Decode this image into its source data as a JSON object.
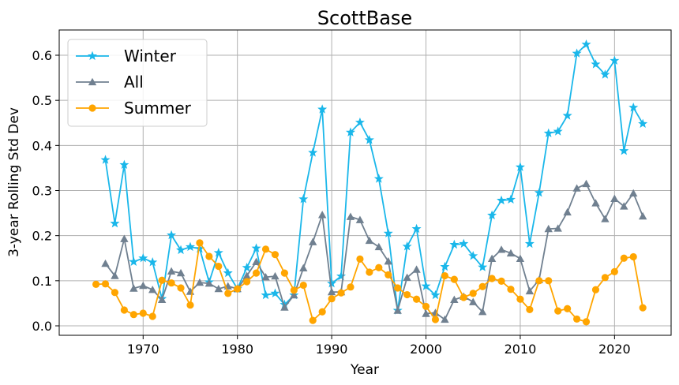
{
  "chart_data": {
    "type": "line",
    "title": "ScottBase",
    "xlabel": "Year",
    "ylabel": "3-year Rolling Std Dev",
    "xlim": [
      1961.1,
      2026
    ],
    "ylim": [
      -0.021,
      0.656
    ],
    "xticks": [
      1970,
      1980,
      1990,
      2000,
      2010,
      2020
    ],
    "yticks": [
      0.0,
      0.1,
      0.2,
      0.3,
      0.4,
      0.5,
      0.6
    ],
    "grid": true,
    "legend_position": "top-left",
    "series": [
      {
        "name": "Winter",
        "color": "#1ab7ea",
        "marker": "star",
        "x": [
          1966,
          1967,
          1968,
          1969,
          1970,
          1971,
          1972,
          1973,
          1974,
          1975,
          1976,
          1977,
          1978,
          1979,
          1980,
          1981,
          1982,
          1983,
          1984,
          1985,
          1986,
          1987,
          1988,
          1989,
          1990,
          1991,
          1992,
          1993,
          1994,
          1995,
          1996,
          1997,
          1998,
          1999,
          2000,
          2001,
          2002,
          2003,
          2004,
          2005,
          2006,
          2007,
          2008,
          2009,
          2010,
          2011,
          2012,
          2013,
          2014,
          2015,
          2016,
          2017,
          2018,
          2019,
          2020,
          2021,
          2022,
          2023
        ],
        "values": [
          0.368,
          0.227,
          0.357,
          0.142,
          0.15,
          0.141,
          0.06,
          0.201,
          0.168,
          0.175,
          0.171,
          0.097,
          0.162,
          0.117,
          0.082,
          0.129,
          0.172,
          0.068,
          0.072,
          0.047,
          0.068,
          0.281,
          0.384,
          0.48,
          0.094,
          0.11,
          0.429,
          0.451,
          0.412,
          0.326,
          0.205,
          0.034,
          0.176,
          0.215,
          0.088,
          0.068,
          0.131,
          0.18,
          0.182,
          0.155,
          0.13,
          0.245,
          0.278,
          0.28,
          0.352,
          0.182,
          0.295,
          0.427,
          0.431,
          0.466,
          0.604,
          0.624,
          0.58,
          0.557,
          0.588,
          0.388,
          0.484,
          0.448
        ]
      },
      {
        "name": "All",
        "color": "#708090",
        "marker": "triangle",
        "x": [
          1966,
          1967,
          1968,
          1969,
          1970,
          1971,
          1972,
          1973,
          1974,
          1975,
          1976,
          1977,
          1978,
          1979,
          1980,
          1981,
          1982,
          1983,
          1984,
          1985,
          1986,
          1987,
          1988,
          1989,
          1990,
          1991,
          1992,
          1993,
          1994,
          1995,
          1996,
          1997,
          1998,
          1999,
          2000,
          2001,
          2002,
          2003,
          2004,
          2005,
          2006,
          2007,
          2008,
          2009,
          2010,
          2011,
          2012,
          2013,
          2014,
          2015,
          2016,
          2017,
          2018,
          2019,
          2020,
          2021,
          2022,
          2023
        ],
        "values": [
          0.138,
          0.111,
          0.193,
          0.083,
          0.089,
          0.08,
          0.058,
          0.121,
          0.117,
          0.076,
          0.096,
          0.094,
          0.082,
          0.088,
          0.082,
          0.111,
          0.142,
          0.108,
          0.11,
          0.041,
          0.068,
          0.128,
          0.186,
          0.246,
          0.075,
          0.075,
          0.242,
          0.235,
          0.189,
          0.175,
          0.143,
          0.034,
          0.107,
          0.125,
          0.027,
          0.029,
          0.014,
          0.058,
          0.065,
          0.053,
          0.031,
          0.149,
          0.169,
          0.161,
          0.149,
          0.077,
          0.102,
          0.215,
          0.216,
          0.252,
          0.305,
          0.315,
          0.272,
          0.237,
          0.282,
          0.265,
          0.294,
          0.243
        ]
      },
      {
        "name": "Summer",
        "color": "#ffa500",
        "marker": "circle",
        "x": [
          1965,
          1966,
          1967,
          1968,
          1969,
          1970,
          1971,
          1972,
          1973,
          1974,
          1975,
          1976,
          1977,
          1978,
          1979,
          1980,
          1981,
          1982,
          1983,
          1984,
          1985,
          1986,
          1987,
          1988,
          1989,
          1990,
          1991,
          1992,
          1993,
          1994,
          1995,
          1996,
          1997,
          1998,
          1999,
          2000,
          2001,
          2002,
          2003,
          2004,
          2005,
          2006,
          2007,
          2008,
          2009,
          2010,
          2011,
          2012,
          2013,
          2014,
          2015,
          2016,
          2017,
          2018,
          2019,
          2020,
          2021,
          2022,
          2023
        ],
        "values": [
          0.092,
          0.093,
          0.074,
          0.035,
          0.025,
          0.028,
          0.021,
          0.101,
          0.095,
          0.084,
          0.046,
          0.184,
          0.154,
          0.132,
          0.072,
          0.082,
          0.098,
          0.117,
          0.17,
          0.158,
          0.117,
          0.079,
          0.09,
          0.012,
          0.031,
          0.06,
          0.073,
          0.086,
          0.148,
          0.119,
          0.129,
          0.113,
          0.084,
          0.069,
          0.059,
          0.043,
          0.014,
          0.111,
          0.103,
          0.063,
          0.072,
          0.087,
          0.105,
          0.099,
          0.081,
          0.059,
          0.036,
          0.1,
          0.1,
          0.033,
          0.038,
          0.015,
          0.009,
          0.08,
          0.107,
          0.12,
          0.15,
          0.153,
          0.04
        ]
      }
    ]
  }
}
